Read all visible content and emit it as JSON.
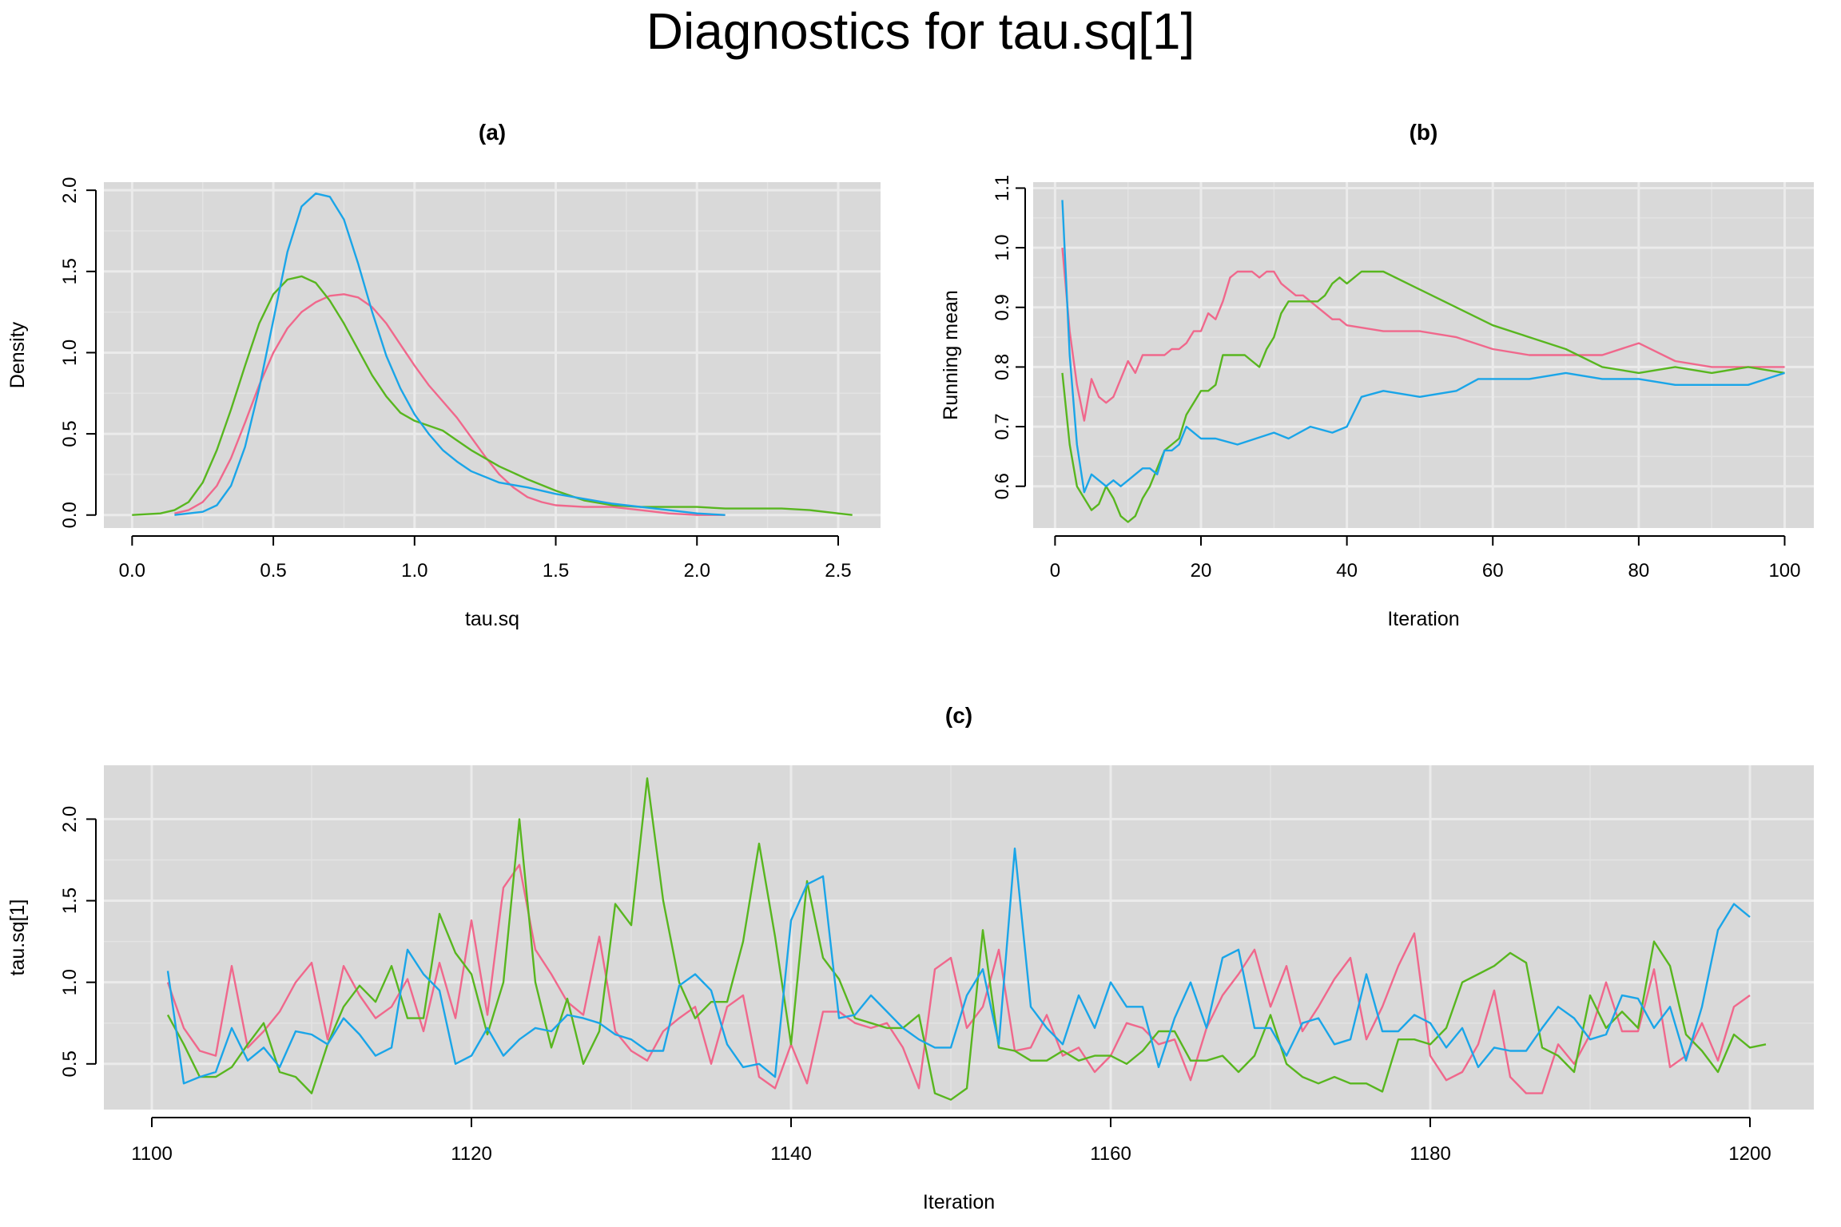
{
  "title": "Diagnostics for tau.sq[1]",
  "colors": {
    "series1": "#f0688c",
    "series2": "#58b61f",
    "series3": "#1aa5e8"
  },
  "chart_data": [
    {
      "panel": "(a)",
      "type": "line",
      "title": "(a)",
      "xlabel": "tau.sq",
      "ylabel": "Density",
      "xlim": [
        -0.1,
        2.65
      ],
      "ylim": [
        -0.08,
        2.05
      ],
      "xticks": [
        "0.0",
        "0.5",
        "1.0",
        "1.5",
        "2.0",
        "2.5"
      ],
      "yticks": [
        "0.0",
        "0.5",
        "1.0",
        "1.5",
        "2.0"
      ],
      "grid": true,
      "series": [
        {
          "color": "#f0688c",
          "x": [
            0.15,
            0.2,
            0.25,
            0.3,
            0.35,
            0.4,
            0.45,
            0.5,
            0.55,
            0.6,
            0.65,
            0.7,
            0.75,
            0.8,
            0.85,
            0.9,
            0.95,
            1.0,
            1.05,
            1.1,
            1.15,
            1.2,
            1.25,
            1.3,
            1.35,
            1.4,
            1.45,
            1.5,
            1.6,
            1.7,
            1.8,
            1.9,
            2.0,
            2.1
          ],
          "y": [
            0.01,
            0.03,
            0.08,
            0.18,
            0.35,
            0.57,
            0.8,
            1.0,
            1.15,
            1.25,
            1.31,
            1.35,
            1.36,
            1.34,
            1.28,
            1.18,
            1.05,
            0.92,
            0.8,
            0.7,
            0.6,
            0.48,
            0.36,
            0.25,
            0.17,
            0.11,
            0.08,
            0.06,
            0.05,
            0.05,
            0.03,
            0.01,
            0.0,
            0.0
          ]
        },
        {
          "color": "#58b61f",
          "x": [
            0.0,
            0.1,
            0.15,
            0.2,
            0.25,
            0.3,
            0.35,
            0.4,
            0.45,
            0.5,
            0.55,
            0.6,
            0.65,
            0.7,
            0.75,
            0.8,
            0.85,
            0.9,
            0.95,
            1.0,
            1.05,
            1.1,
            1.15,
            1.2,
            1.3,
            1.4,
            1.5,
            1.6,
            1.7,
            1.8,
            1.9,
            2.0,
            2.1,
            2.2,
            2.3,
            2.4,
            2.5,
            2.55
          ],
          "y": [
            0.0,
            0.01,
            0.03,
            0.08,
            0.2,
            0.4,
            0.65,
            0.92,
            1.18,
            1.36,
            1.45,
            1.47,
            1.43,
            1.32,
            1.18,
            1.02,
            0.86,
            0.73,
            0.63,
            0.58,
            0.55,
            0.52,
            0.46,
            0.4,
            0.3,
            0.22,
            0.15,
            0.09,
            0.06,
            0.05,
            0.05,
            0.05,
            0.04,
            0.04,
            0.04,
            0.03,
            0.01,
            0.0
          ]
        },
        {
          "color": "#1aa5e8",
          "x": [
            0.15,
            0.25,
            0.3,
            0.35,
            0.4,
            0.45,
            0.5,
            0.55,
            0.6,
            0.65,
            0.7,
            0.75,
            0.8,
            0.85,
            0.9,
            0.95,
            1.0,
            1.05,
            1.1,
            1.15,
            1.2,
            1.3,
            1.4,
            1.5,
            1.6,
            1.7,
            1.8,
            1.9,
            2.0,
            2.1
          ],
          "y": [
            0.0,
            0.02,
            0.06,
            0.18,
            0.42,
            0.78,
            1.2,
            1.62,
            1.9,
            1.98,
            1.96,
            1.82,
            1.55,
            1.25,
            0.98,
            0.78,
            0.62,
            0.5,
            0.4,
            0.33,
            0.27,
            0.2,
            0.17,
            0.13,
            0.1,
            0.07,
            0.05,
            0.03,
            0.01,
            0.0
          ]
        }
      ]
    },
    {
      "panel": "(b)",
      "type": "line",
      "title": "(b)",
      "xlabel": "Iteration",
      "ylabel": "Running mean",
      "xlim": [
        -3,
        104
      ],
      "ylim": [
        0.53,
        1.11
      ],
      "xticks": [
        "0",
        "20",
        "40",
        "60",
        "80",
        "100"
      ],
      "yticks": [
        "0.6",
        "0.7",
        "0.8",
        "0.9",
        "1.0",
        "1.1"
      ],
      "grid": true,
      "series": [
        {
          "color": "#f0688c",
          "x": [
            1,
            2,
            3,
            4,
            5,
            6,
            7,
            8,
            9,
            10,
            11,
            12,
            13,
            14,
            15,
            16,
            17,
            18,
            19,
            20,
            21,
            22,
            23,
            24,
            25,
            26,
            27,
            28,
            29,
            30,
            31,
            32,
            33,
            34,
            35,
            36,
            37,
            38,
            39,
            40,
            45,
            50,
            55,
            60,
            65,
            70,
            75,
            80,
            85,
            90,
            95,
            100
          ],
          "y": [
            1.0,
            0.86,
            0.77,
            0.71,
            0.78,
            0.75,
            0.74,
            0.75,
            0.78,
            0.81,
            0.79,
            0.82,
            0.82,
            0.82,
            0.82,
            0.83,
            0.83,
            0.84,
            0.86,
            0.86,
            0.89,
            0.88,
            0.91,
            0.95,
            0.96,
            0.96,
            0.96,
            0.95,
            0.96,
            0.96,
            0.94,
            0.93,
            0.92,
            0.92,
            0.91,
            0.9,
            0.89,
            0.88,
            0.88,
            0.87,
            0.86,
            0.86,
            0.85,
            0.83,
            0.82,
            0.82,
            0.82,
            0.84,
            0.81,
            0.8,
            0.8,
            0.8
          ]
        },
        {
          "color": "#58b61f",
          "x": [
            1,
            2,
            3,
            4,
            5,
            6,
            7,
            8,
            9,
            10,
            11,
            12,
            13,
            14,
            15,
            16,
            17,
            18,
            19,
            20,
            21,
            22,
            23,
            24,
            25,
            26,
            27,
            28,
            29,
            30,
            31,
            32,
            33,
            34,
            35,
            36,
            37,
            38,
            39,
            40,
            41,
            42,
            43,
            45,
            50,
            55,
            60,
            65,
            70,
            75,
            80,
            85,
            90,
            95,
            100
          ],
          "y": [
            0.79,
            0.67,
            0.6,
            0.58,
            0.56,
            0.57,
            0.6,
            0.58,
            0.55,
            0.54,
            0.55,
            0.58,
            0.6,
            0.63,
            0.66,
            0.67,
            0.68,
            0.72,
            0.74,
            0.76,
            0.76,
            0.77,
            0.82,
            0.82,
            0.82,
            0.82,
            0.81,
            0.8,
            0.83,
            0.85,
            0.89,
            0.91,
            0.91,
            0.91,
            0.91,
            0.91,
            0.92,
            0.94,
            0.95,
            0.94,
            0.95,
            0.96,
            0.96,
            0.96,
            0.93,
            0.9,
            0.87,
            0.85,
            0.83,
            0.8,
            0.79,
            0.8,
            0.79,
            0.8,
            0.79
          ]
        },
        {
          "color": "#1aa5e8",
          "x": [
            1,
            2,
            3,
            4,
            5,
            6,
            7,
            8,
            9,
            10,
            11,
            12,
            13,
            14,
            15,
            16,
            17,
            18,
            19,
            20,
            22,
            25,
            30,
            32,
            35,
            38,
            40,
            42,
            45,
            50,
            55,
            58,
            60,
            65,
            70,
            75,
            80,
            85,
            90,
            95,
            100
          ],
          "y": [
            1.08,
            0.82,
            0.67,
            0.59,
            0.62,
            0.61,
            0.6,
            0.61,
            0.6,
            0.61,
            0.62,
            0.63,
            0.63,
            0.62,
            0.66,
            0.66,
            0.67,
            0.7,
            0.69,
            0.68,
            0.68,
            0.67,
            0.69,
            0.68,
            0.7,
            0.69,
            0.7,
            0.75,
            0.76,
            0.75,
            0.76,
            0.78,
            0.78,
            0.78,
            0.79,
            0.78,
            0.78,
            0.77,
            0.77,
            0.77,
            0.79
          ]
        }
      ]
    },
    {
      "panel": "(c)",
      "type": "line",
      "title": "(c)",
      "xlabel": "Iteration",
      "ylabel": "tau.sq[1]",
      "xlim": [
        1097,
        1204
      ],
      "ylim": [
        0.22,
        2.33
      ],
      "xticks": [
        "1100",
        "1120",
        "1140",
        "1160",
        "1180",
        "1200"
      ],
      "yticks": [
        "0.5",
        "1.0",
        "1.5",
        "2.0"
      ],
      "grid": true,
      "series": [
        {
          "color": "#f0688c",
          "x_start": 1101,
          "y": [
            1.0,
            0.72,
            0.58,
            0.55,
            1.1,
            0.6,
            0.7,
            0.82,
            1.0,
            1.12,
            0.65,
            1.1,
            0.92,
            0.78,
            0.85,
            1.02,
            0.7,
            1.12,
            0.78,
            1.38,
            0.8,
            1.58,
            1.72,
            1.2,
            1.05,
            0.88,
            0.8,
            1.28,
            0.7,
            0.58,
            0.52,
            0.7,
            0.78,
            0.85,
            0.5,
            0.85,
            0.92,
            0.42,
            0.35,
            0.62,
            0.38,
            0.82,
            0.82,
            0.75,
            0.72,
            0.75,
            0.6,
            0.35,
            1.08,
            1.15,
            0.72,
            0.85,
            1.2,
            0.58,
            0.6,
            0.8,
            0.55,
            0.6,
            0.45,
            0.55,
            0.75,
            0.72,
            0.62,
            0.65,
            0.4,
            0.72,
            0.92,
            1.05,
            1.2,
            0.85,
            1.1,
            0.7,
            0.85,
            1.02,
            1.15,
            0.65,
            0.85,
            1.1,
            1.3,
            0.55,
            0.4,
            0.45,
            0.62,
            0.95,
            0.42,
            0.32,
            0.32,
            0.62,
            0.5,
            0.68,
            1.0,
            0.7,
            0.7,
            1.08,
            0.48,
            0.55,
            0.75,
            0.52,
            0.85,
            0.92
          ]
        },
        {
          "color": "#58b61f",
          "x_start": 1101,
          "y": [
            0.8,
            0.62,
            0.42,
            0.42,
            0.48,
            0.62,
            0.75,
            0.45,
            0.42,
            0.32,
            0.62,
            0.85,
            0.98,
            0.88,
            1.1,
            0.78,
            0.78,
            1.42,
            1.18,
            1.05,
            0.68,
            1.0,
            2.0,
            1.0,
            0.6,
            0.9,
            0.5,
            0.7,
            1.48,
            1.35,
            2.25,
            1.5,
            1.0,
            0.78,
            0.88,
            0.88,
            1.25,
            1.85,
            1.28,
            0.62,
            1.62,
            1.15,
            1.02,
            0.78,
            0.75,
            0.72,
            0.72,
            0.8,
            0.32,
            0.28,
            0.35,
            1.32,
            0.6,
            0.58,
            0.52,
            0.52,
            0.58,
            0.52,
            0.55,
            0.55,
            0.5,
            0.58,
            0.7,
            0.7,
            0.52,
            0.52,
            0.55,
            0.45,
            0.55,
            0.8,
            0.5,
            0.42,
            0.38,
            0.42,
            0.38,
            0.38,
            0.33,
            0.65,
            0.65,
            0.62,
            0.72,
            1.0,
            1.05,
            1.1,
            1.18,
            1.12,
            0.6,
            0.55,
            0.45,
            0.92,
            0.72,
            0.82,
            0.72,
            1.25,
            1.1,
            0.68,
            0.58,
            0.45,
            0.68,
            0.6,
            0.62
          ]
        },
        {
          "color": "#1aa5e8",
          "x_start": 1101,
          "y": [
            1.07,
            0.38,
            0.42,
            0.45,
            0.72,
            0.52,
            0.6,
            0.48,
            0.7,
            0.68,
            0.62,
            0.78,
            0.68,
            0.55,
            0.6,
            1.2,
            1.05,
            0.95,
            0.5,
            0.55,
            0.72,
            0.55,
            0.65,
            0.72,
            0.7,
            0.8,
            0.78,
            0.75,
            0.68,
            0.65,
            0.58,
            0.58,
            0.98,
            1.05,
            0.95,
            0.62,
            0.48,
            0.5,
            0.42,
            1.38,
            1.6,
            1.65,
            0.78,
            0.8,
            0.92,
            0.82,
            0.72,
            0.65,
            0.6,
            0.6,
            0.92,
            1.08,
            0.62,
            1.82,
            0.85,
            0.72,
            0.62,
            0.92,
            0.72,
            1.0,
            0.85,
            0.85,
            0.48,
            0.78,
            1.0,
            0.72,
            1.15,
            1.2,
            0.72,
            0.72,
            0.55,
            0.75,
            0.78,
            0.62,
            0.65,
            1.05,
            0.7,
            0.7,
            0.8,
            0.75,
            0.6,
            0.72,
            0.48,
            0.6,
            0.58,
            0.58,
            0.72,
            0.85,
            0.78,
            0.65,
            0.68,
            0.92,
            0.9,
            0.72,
            0.85,
            0.52,
            0.85,
            1.32,
            1.48,
            1.4
          ]
        }
      ]
    }
  ]
}
